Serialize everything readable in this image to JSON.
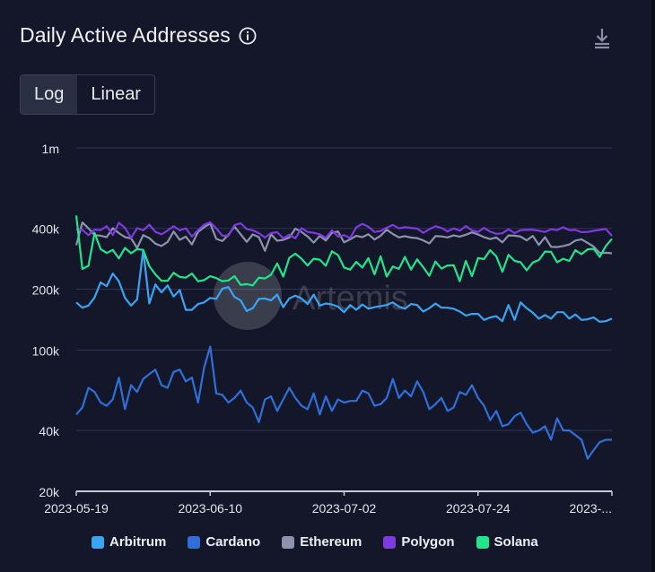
{
  "header": {
    "title": "Daily Active Addresses"
  },
  "icons": {
    "info": "info-icon",
    "download": "download-icon"
  },
  "toggle": {
    "options": [
      "Log",
      "Linear"
    ],
    "selected": "Log"
  },
  "watermark": "Artemis",
  "chart_data": {
    "type": "line",
    "title": "Daily Active Addresses",
    "scale": "log",
    "ylim": [
      20000,
      1000000
    ],
    "y_ticks": [
      {
        "value": 1000000,
        "label": "1m"
      },
      {
        "value": 400000,
        "label": "400k"
      },
      {
        "value": 200000,
        "label": "200k"
      },
      {
        "value": 100000,
        "label": "100k"
      },
      {
        "value": 40000,
        "label": "40k"
      },
      {
        "value": 20000,
        "label": "20k"
      }
    ],
    "x_tick_labels": [
      "2023-05-19",
      "2023-06-10",
      "2023-07-02",
      "2023-07-24",
      "2023-..."
    ],
    "x_tick_indices": [
      0,
      22,
      44,
      66,
      88
    ],
    "grid": true,
    "legend_position": "bottom",
    "series": [
      {
        "name": "Arbitrum",
        "color": "#3ba4f2",
        "values": [
          172000,
          162000,
          166000,
          182000,
          216000,
          207000,
          239000,
          219000,
          181000,
          166000,
          178000,
          313000,
          170000,
          211000,
          193000,
          209000,
          184000,
          198000,
          158000,
          158000,
          169000,
          172000,
          181000,
          179000,
          201000,
          205000,
          183000,
          176000,
          156000,
          161000,
          179000,
          180000,
          176000,
          188000,
          163000,
          180000,
          186000,
          180000,
          169000,
          188000,
          166000,
          170000,
          168000,
          164000,
          154000,
          167000,
          158000,
          168000,
          160000,
          163000,
          165000,
          167000,
          172000,
          164000,
          160000,
          169000,
          167000,
          155000,
          161000,
          170000,
          162000,
          162000,
          160000,
          155000,
          148000,
          151000,
          151000,
          141000,
          145000,
          147000,
          139000,
          167000,
          141000,
          172000,
          161000,
          153000,
          143000,
          149000,
          143000,
          154000,
          154000,
          143000,
          150000,
          141000,
          142000,
          145000,
          138000,
          139000,
          143000
        ]
      },
      {
        "name": "Cardano",
        "color": "#2f6fd9",
        "values": [
          48000,
          52000,
          65000,
          62000,
          55000,
          53000,
          57000,
          73000,
          51000,
          67000,
          62000,
          72000,
          76000,
          80000,
          67000,
          65000,
          78000,
          80000,
          70000,
          73000,
          55000,
          82000,
          104000,
          61000,
          60000,
          55000,
          58000,
          63000,
          55000,
          52000,
          44000,
          57000,
          59000,
          50000,
          57000,
          65000,
          58000,
          53000,
          51000,
          61000,
          48000,
          59000,
          50000,
          57000,
          55000,
          56000,
          56000,
          63000,
          61000,
          53000,
          54000,
          58000,
          72000,
          58000,
          63000,
          59000,
          70000,
          62000,
          51000,
          54000,
          58000,
          50000,
          52000,
          62000,
          60000,
          67000,
          58000,
          53000,
          45000,
          50000,
          42000,
          43000,
          47000,
          49000,
          43000,
          39000,
          40000,
          42000,
          36000,
          46000,
          40000,
          40000,
          38000,
          36000,
          29000,
          32000,
          35000,
          36000,
          36000
        ]
      },
      {
        "name": "Ethereum",
        "color": "#8e93ad",
        "values": [
          330000,
          428000,
          400000,
          370000,
          368000,
          362000,
          401000,
          379000,
          362000,
          357000,
          320000,
          370000,
          358000,
          336000,
          327000,
          343000,
          386000,
          351000,
          364000,
          333000,
          384000,
          405000,
          423000,
          355000,
          346000,
          372000,
          408000,
          374000,
          343000,
          373000,
          362000,
          310000,
          374000,
          347000,
          351000,
          360000,
          399000,
          384000,
          365000,
          340000,
          367000,
          348000,
          380000,
          386000,
          341000,
          353000,
          367000,
          362000,
          374000,
          352000,
          368000,
          394000,
          375000,
          361000,
          366000,
          360000,
          358000,
          349000,
          337000,
          366000,
          365000,
          361000,
          369000,
          364000,
          372000,
          382000,
          373000,
          362000,
          354000,
          361000,
          341000,
          369000,
          368000,
          364000,
          349000,
          367000,
          331000,
          362000,
          324000,
          323000,
          327000,
          333000,
          348000,
          353000,
          339000,
          325000,
          302000,
          303000,
          301000
        ]
      },
      {
        "name": "Polygon",
        "color": "#7f3ae0",
        "values": [
          395000,
          393000,
          370000,
          394000,
          392000,
          410000,
          371000,
          426000,
          402000,
          359000,
          401000,
          391000,
          417000,
          384000,
          374000,
          390000,
          410000,
          391000,
          400000,
          364000,
          392000,
          417000,
          429000,
          400000,
          368000,
          367000,
          415000,
          424000,
          397000,
          391000,
          379000,
          360000,
          379000,
          383000,
          357000,
          372000,
          357000,
          401000,
          384000,
          380000,
          374000,
          359000,
          391000,
          364000,
          370000,
          358000,
          405000,
          421000,
          407000,
          384000,
          388000,
          403000,
          416000,
          400000,
          406000,
          402000,
          399000,
          380000,
          396000,
          410000,
          402000,
          386000,
          400000,
          389000,
          411000,
          391000,
          384000,
          402000,
          385000,
          376000,
          378000,
          396000,
          379000,
          392000,
          393000,
          394000,
          389000,
          384000,
          396000,
          392000,
          405000,
          392000,
          393000,
          383000,
          384000,
          389000,
          393000,
          397000,
          367000
        ]
      },
      {
        "name": "Solana",
        "color": "#22e58b",
        "values": [
          463000,
          252000,
          261000,
          380000,
          316000,
          302000,
          313000,
          284000,
          320000,
          301000,
          316000,
          313000,
          260000,
          237000,
          220000,
          220000,
          241000,
          230000,
          228000,
          239000,
          219000,
          222000,
          232000,
          227000,
          219000,
          221000,
          232000,
          210000,
          212000,
          209000,
          228000,
          226000,
          236000,
          268000,
          231000,
          286000,
          300000,
          283000,
          262000,
          283000,
          280000,
          261000,
          308000,
          295000,
          256000,
          250000,
          273000,
          256000,
          285000,
          237000,
          291000,
          231000,
          259000,
          252000,
          289000,
          250000,
          281000,
          257000,
          233000,
          274000,
          253000,
          262000,
          263000,
          219000,
          276000,
          232000,
          285000,
          282000,
          312000,
          291000,
          244000,
          296000,
          276000,
          272000,
          248000,
          271000,
          279000,
          307000,
          306000,
          272000,
          283000,
          276000,
          312000,
          298000,
          315000,
          317000,
          289000,
          327000,
          355000
        ]
      }
    ]
  }
}
